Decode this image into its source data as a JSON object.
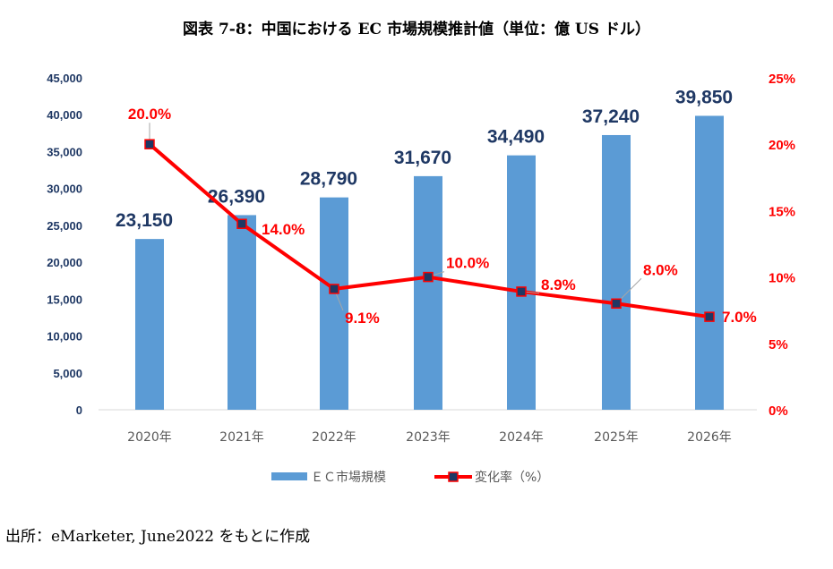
{
  "chart_data": {
    "type": "bar+line",
    "title": "図表 7-8：中国における EC 市場規模推計値（単位：億 US ドル）",
    "categories": [
      "2020年",
      "2021年",
      "2022年",
      "2023年",
      "2024年",
      "2025年",
      "2026年"
    ],
    "series": [
      {
        "name": "ＥＣ市場規模",
        "type": "bar",
        "axis": "left",
        "color": "#5b9bd5",
        "values": [
          23150,
          26390,
          28790,
          31670,
          34490,
          37240,
          39850
        ],
        "labels": [
          "23,150",
          "26,390",
          "28,790",
          "31,670",
          "34,490",
          "37,240",
          "39,850"
        ],
        "label_color": "#1f3864"
      },
      {
        "name": "変化率（%）",
        "type": "line",
        "axis": "right",
        "color": "#ff0000",
        "marker_color": "#1f3864",
        "values": [
          20.0,
          14.0,
          9.1,
          10.0,
          8.9,
          8.0,
          7.0
        ],
        "labels": [
          "20.0%",
          "14.0%",
          "9.1%",
          "10.0%",
          "8.9%",
          "8.0%",
          "7.0%"
        ],
        "label_color": "#ff0000"
      }
    ],
    "y_left": {
      "range": [
        0,
        45000
      ],
      "ticks": [
        "0",
        "5,000",
        "10,000",
        "15,000",
        "20,000",
        "25,000",
        "30,000",
        "35,000",
        "40,000",
        "45,000"
      ],
      "color": "#1f3864"
    },
    "y_right": {
      "range": [
        0,
        25
      ],
      "ticks": [
        "0%",
        "5%",
        "10%",
        "15%",
        "20%",
        "25%"
      ],
      "color": "#ff0000"
    },
    "grid": false,
    "legend": "bottom"
  },
  "source": "出所：eMarketer, June2022 をもとに作成"
}
